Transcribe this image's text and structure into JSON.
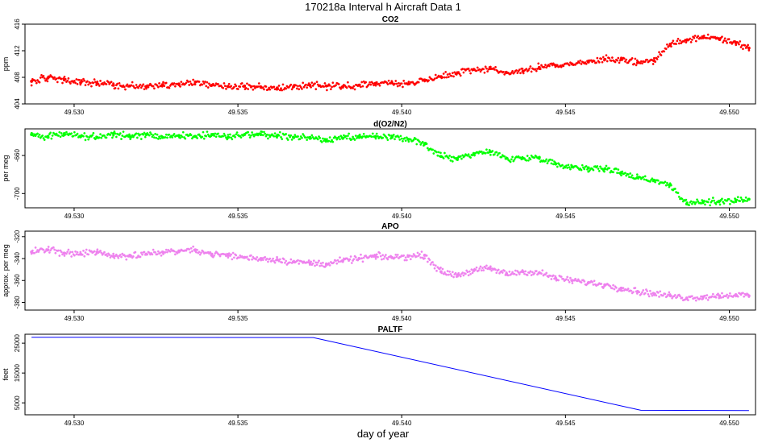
{
  "figure": {
    "title": "170218a   Interval h Aircraft Data 1",
    "xlabel": "day of year"
  },
  "chart_data": [
    {
      "type": "scatter",
      "title": "CO2",
      "ylabel": "ppm",
      "xlim": [
        49.5285,
        49.5508
      ],
      "xticks": [
        49.53,
        49.535,
        49.54,
        49.545,
        49.55
      ],
      "xtick_labels": [
        "49.530",
        "49.535",
        "49.540",
        "49.545",
        "49.550"
      ],
      "ylim": [
        404,
        416
      ],
      "yticks": [
        404,
        408,
        412,
        416
      ],
      "ytick_labels": [
        "404",
        "408",
        "412",
        "416"
      ],
      "color": "#ff0000",
      "series": [
        {
          "x": [
            49.5287,
            49.5292,
            49.5297,
            49.5302,
            49.5307,
            49.5312,
            49.5317,
            49.5322,
            49.5327,
            49.5332,
            49.5337,
            49.5342,
            49.5347,
            49.5352,
            49.5357,
            49.5362,
            49.5367,
            49.5372,
            49.5377,
            49.5382,
            49.5387,
            49.5392,
            49.5397,
            49.5402,
            49.5407,
            49.5412,
            49.5417,
            49.5422,
            49.5427,
            49.5432,
            49.5437,
            49.5442,
            49.5447,
            49.5452,
            49.5457,
            49.5462,
            49.5467,
            49.5472,
            49.5477,
            49.5482,
            49.5487,
            49.5492,
            49.5497,
            49.5502,
            49.5506
          ],
          "y": [
            407.4,
            407.9,
            407.6,
            407.2,
            407.1,
            406.8,
            406.7,
            406.6,
            406.9,
            407.0,
            407.3,
            406.8,
            406.6,
            406.7,
            406.5,
            406.4,
            406.6,
            406.8,
            406.7,
            406.6,
            406.8,
            407.1,
            407.2,
            407.0,
            407.6,
            408.1,
            408.7,
            409.2,
            409.3,
            408.7,
            408.9,
            409.5,
            409.8,
            410.0,
            410.3,
            410.7,
            410.7,
            410.2,
            410.5,
            413.0,
            413.6,
            414.1,
            413.7,
            413.2,
            412.4
          ]
        }
      ]
    },
    {
      "type": "scatter",
      "title": "d(O2/N2)",
      "ylabel": "per meg",
      "xlim": [
        49.5285,
        49.5508
      ],
      "xticks": [
        49.53,
        49.535,
        49.54,
        49.545,
        49.55
      ],
      "xtick_labels": [
        "49.530",
        "49.535",
        "49.540",
        "49.545",
        "49.550"
      ],
      "ylim": [
        -715,
        -632
      ],
      "yticks": [
        -700,
        -660
      ],
      "ytick_labels": [
        "-700",
        "-660"
      ],
      "color": "#00ff00",
      "series": [
        {
          "x": [
            49.5287,
            49.5292,
            49.5297,
            49.5302,
            49.5307,
            49.5312,
            49.5317,
            49.5322,
            49.5327,
            49.5332,
            49.5337,
            49.5342,
            49.5347,
            49.5352,
            49.5357,
            49.5362,
            49.5367,
            49.5372,
            49.5377,
            49.5382,
            49.5387,
            49.5392,
            49.5397,
            49.5402,
            49.5407,
            49.5412,
            49.5417,
            49.5422,
            49.5427,
            49.5432,
            49.5437,
            49.5442,
            49.5447,
            49.5452,
            49.5457,
            49.5462,
            49.5467,
            49.5472,
            49.5477,
            49.5482,
            49.5487,
            49.5492,
            49.5497,
            49.5502,
            49.5506
          ],
          "y": [
            -638,
            -640,
            -637,
            -640,
            -641,
            -637,
            -640,
            -638,
            -641,
            -639,
            -640,
            -638,
            -641,
            -638,
            -638,
            -639,
            -641,
            -641,
            -644,
            -642,
            -641,
            -640,
            -641,
            -643,
            -648,
            -661,
            -663,
            -658,
            -656,
            -663,
            -663,
            -662,
            -669,
            -672,
            -673,
            -674,
            -678,
            -683,
            -686,
            -691,
            -711,
            -709,
            -708,
            -707,
            -706
          ]
        }
      ]
    },
    {
      "type": "scatter",
      "title": "APO",
      "ylabel": "approx. per meg",
      "xlim": [
        49.5285,
        49.5508
      ],
      "xticks": [
        49.53,
        49.535,
        49.54,
        49.545,
        49.55
      ],
      "xtick_labels": [
        "49.530",
        "49.535",
        "49.540",
        "49.545",
        "49.550"
      ],
      "ylim": [
        -387,
        -315
      ],
      "yticks": [
        -380,
        -360,
        -340,
        -320
      ],
      "ytick_labels": [
        "-380",
        "-360",
        "-340",
        "-320"
      ],
      "color": "#ee82ee",
      "series": [
        {
          "x": [
            49.5287,
            49.5292,
            49.5297,
            49.5302,
            49.5307,
            49.5312,
            49.5317,
            49.5322,
            49.5327,
            49.5332,
            49.5337,
            49.5342,
            49.5347,
            49.5352,
            49.5357,
            49.5362,
            49.5367,
            49.5372,
            49.5377,
            49.5382,
            49.5387,
            49.5392,
            49.5397,
            49.5402,
            49.5407,
            49.5412,
            49.5417,
            49.5422,
            49.5427,
            49.5432,
            49.5437,
            49.5442,
            49.5447,
            49.5452,
            49.5457,
            49.5462,
            49.5467,
            49.5472,
            49.5477,
            49.5482,
            49.5487,
            49.5492,
            49.5497,
            49.5502,
            49.5506
          ],
          "y": [
            -334,
            -332,
            -335,
            -336,
            -334,
            -338,
            -337,
            -336,
            -334,
            -333,
            -332,
            -336,
            -337,
            -339,
            -340,
            -341,
            -343,
            -344,
            -345,
            -342,
            -340,
            -338,
            -339,
            -338,
            -337,
            -352,
            -355,
            -351,
            -349,
            -354,
            -352,
            -353,
            -358,
            -360,
            -362,
            -364,
            -367,
            -370,
            -372,
            -374,
            -376,
            -375,
            -374,
            -373,
            -374
          ]
        }
      ]
    },
    {
      "type": "line",
      "title": "PALTF",
      "ylabel": "feet",
      "xlim": [
        49.5285,
        49.5508
      ],
      "xticks": [
        49.53,
        49.535,
        49.54,
        49.545,
        49.55
      ],
      "xtick_labels": [
        "49.530",
        "49.535",
        "49.540",
        "49.545",
        "49.550"
      ],
      "ylim": [
        1000,
        28000
      ],
      "yticks": [
        5000,
        15000,
        25000
      ],
      "ytick_labels": [
        "5000",
        "15000",
        "25000"
      ],
      "color": "#0000ff",
      "series": [
        {
          "x": [
            49.5287,
            49.5373,
            49.5473,
            49.5506
          ],
          "y": [
            27000,
            26900,
            2500,
            2400
          ]
        }
      ]
    }
  ]
}
